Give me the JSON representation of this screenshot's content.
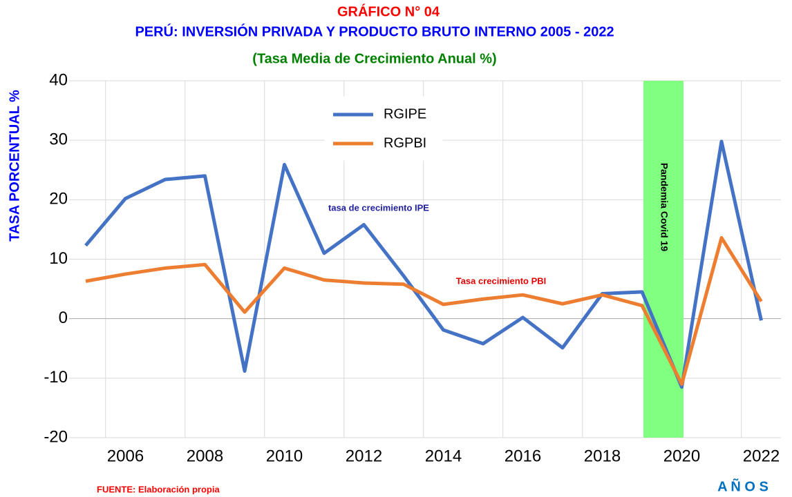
{
  "chart_data": {
    "type": "line",
    "title": "GRÁFICO N° 04",
    "subtitle": "PERÚ: INVERSIÓN PRIVADA Y PRODUCTO BRUTO INTERNO 2005 - 2022",
    "subtitle2": "(Tasa Media de Crecimiento Anual %)",
    "y_label": "TASA PORCENTUAL %",
    "x_label": "A Ñ O S",
    "source": "FUENTE: Elaboración propia",
    "categories": [
      null,
      "2006",
      null,
      "2008",
      null,
      "2010",
      null,
      "2012",
      null,
      "2014",
      null,
      "2016",
      null,
      "2018",
      null,
      "2020",
      null,
      "2022"
    ],
    "series": [
      {
        "name": "RGIPE",
        "color": "#4472c4",
        "values": [
          12.3,
          20.2,
          23.4,
          24.0,
          -8.8,
          25.9,
          11.0,
          15.8,
          7.2,
          -1.9,
          -4.2,
          0.2,
          -4.9,
          4.2,
          4.5,
          -11.5,
          29.8,
          -0.3
        ]
      },
      {
        "name": "RGPBI",
        "color": "#ed7d31",
        "values": [
          6.3,
          7.5,
          8.5,
          9.1,
          1.1,
          8.5,
          6.5,
          6.0,
          5.8,
          2.4,
          3.3,
          4.0,
          2.5,
          4.0,
          2.2,
          -11.0,
          13.6,
          2.9
        ]
      }
    ],
    "annotations": [
      {
        "text": "tasa de crecimiento IPE",
        "color": "#1f1f9f"
      },
      {
        "text": "Tasa crecimiento PBI",
        "color": "#e00000"
      },
      {
        "text": "Pandemia Covid 19",
        "color": "#000000"
      }
    ],
    "ylim": [
      -20,
      40
    ],
    "yticks": [
      -20,
      -10,
      0,
      10,
      20,
      30,
      40
    ],
    "grid": true,
    "legend": "top-center"
  }
}
